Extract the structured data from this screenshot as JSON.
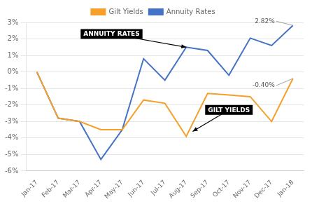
{
  "chart_data": {
    "type": "line",
    "categories": [
      "Jan-17",
      "Feb-17",
      "Mar-17",
      "Apr-17",
      "May-17",
      "Jun-17",
      "Jul-17",
      "Aug-17",
      "Sep-17",
      "Oct-17",
      "Nov-17",
      "Dec-17",
      "Jan-18"
    ],
    "series": [
      {
        "name": "Gilt Yields",
        "color": "#F5A02A",
        "values": [
          0.0,
          -2.8,
          -3.0,
          -3.5,
          -3.5,
          -1.7,
          -1.9,
          -3.9,
          -1.3,
          -1.4,
          -1.5,
          -3.0,
          -0.4
        ]
      },
      {
        "name": "Annuity Rates",
        "color": "#4472C4",
        "values": [
          0.0,
          -2.8,
          -3.0,
          -5.3,
          -3.5,
          0.8,
          -0.5,
          1.5,
          1.3,
          -0.2,
          2.05,
          1.6,
          2.82
        ]
      }
    ],
    "ylim": [
      -6,
      3
    ],
    "yticks": [
      {
        "value": -6,
        "label": "-6%"
      },
      {
        "value": -5,
        "label": "-5%"
      },
      {
        "value": -4,
        "label": "-4%"
      },
      {
        "value": -3,
        "label": "-3%"
      },
      {
        "value": -2,
        "label": "-2%"
      },
      {
        "value": -1,
        "label": "-1%"
      },
      {
        "value": 0,
        "label": "0%"
      },
      {
        "value": 1,
        "label": "1%"
      },
      {
        "value": 2,
        "label": "2%"
      },
      {
        "value": 3,
        "label": "3%"
      }
    ],
    "grid": "y",
    "legend": "top",
    "annotations": [
      {
        "text": "2.82%",
        "x": "Jan-18",
        "y": 2.82
      },
      {
        "text": "-0.40%",
        "x": "Jan-18",
        "y": -0.4
      },
      {
        "text": "ANNUITY RATES",
        "x": "Aug-17",
        "y": 1.5
      },
      {
        "text": "GILT YIELDS",
        "x": "Aug-17",
        "y": -3.9
      }
    ]
  }
}
